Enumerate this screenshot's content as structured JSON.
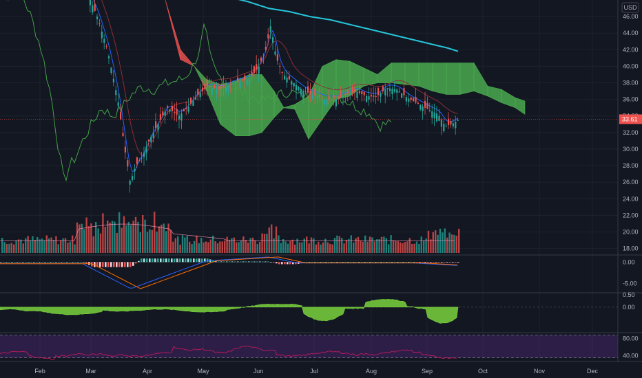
{
  "chart_data": [
    {
      "type": "candlestick",
      "currency_label": "USD",
      "price_ticks": [
        "46.00",
        "44.00",
        "42.00",
        "40.00",
        "38.00",
        "36.00",
        "34.00",
        "32.00",
        "30.00",
        "28.00",
        "26.00",
        "24.00",
        "22.00",
        "20.00",
        "18.00"
      ],
      "ylim": [
        17.3,
        48.0
      ],
      "last_price": "33.61",
      "x_months": [
        "Feb",
        "Mar",
        "Apr",
        "May",
        "Jun",
        "Jul",
        "Aug",
        "Sep",
        "Oct",
        "Nov",
        "Dec"
      ],
      "ichimoku_cloud": {
        "x": [
          240,
          262,
          282,
          300,
          320,
          342,
          362,
          380,
          398,
          412,
          428,
          448,
          468,
          488,
          508,
          528,
          548,
          568,
          588,
          608,
          628,
          648,
          668,
          688,
          708,
          728,
          748,
          762
        ],
        "span_a": [
          48.0,
          40.8,
          40.0,
          38.4,
          37.8,
          38.2,
          39.0,
          39.0,
          37.0,
          35.0,
          35.4,
          36.4,
          40.0,
          40.8,
          40.6,
          39.8,
          39.0,
          40.4,
          40.4,
          40.4,
          40.4,
          40.4,
          40.4,
          40.4,
          37.6,
          37.2,
          36.2,
          35.8
        ],
        "span_b": [
          48.0,
          42.0,
          40.0,
          37.0,
          33.0,
          31.6,
          31.6,
          32.0,
          33.8,
          35.0,
          34.8,
          31.2,
          33.6,
          36.0,
          36.4,
          37.6,
          38.0,
          38.0,
          37.8,
          37.6,
          37.0,
          36.6,
          36.6,
          37.0,
          36.4,
          35.6,
          35.0,
          34.2
        ],
        "bullish_color": "#4caf50",
        "bearish_color": "#ef5350"
      },
      "moving_average": {
        "color": "#26c6da",
        "x": [
          330,
          360,
          390,
          420,
          450,
          480,
          510,
          540,
          570,
          600,
          630,
          650,
          665
        ],
        "y": [
          48.4,
          47.8,
          47.0,
          46.6,
          46.0,
          45.6,
          45.0,
          44.4,
          43.8,
          43.2,
          42.6,
          42.2,
          41.8
        ]
      },
      "volume_color_up": "#26a69a",
      "volume_color_down": "#ef5350"
    },
    {
      "type": "line",
      "indicator": "MACD",
      "ticks": [
        "0.00",
        "-5.00"
      ],
      "ylim": [
        -7,
        1.5
      ]
    },
    {
      "type": "area",
      "indicator": "oscillator",
      "ticks": [
        "0.50",
        "0.00"
      ],
      "ylim": [
        -1.0,
        0.55
      ],
      "color": "#6fbf3a"
    },
    {
      "type": "line",
      "indicator": "RSI",
      "ticks": [
        "80.00",
        "40.00"
      ],
      "ylim": [
        28,
        92
      ],
      "band": [
        30,
        70
      ],
      "color": "#c2185b"
    }
  ]
}
